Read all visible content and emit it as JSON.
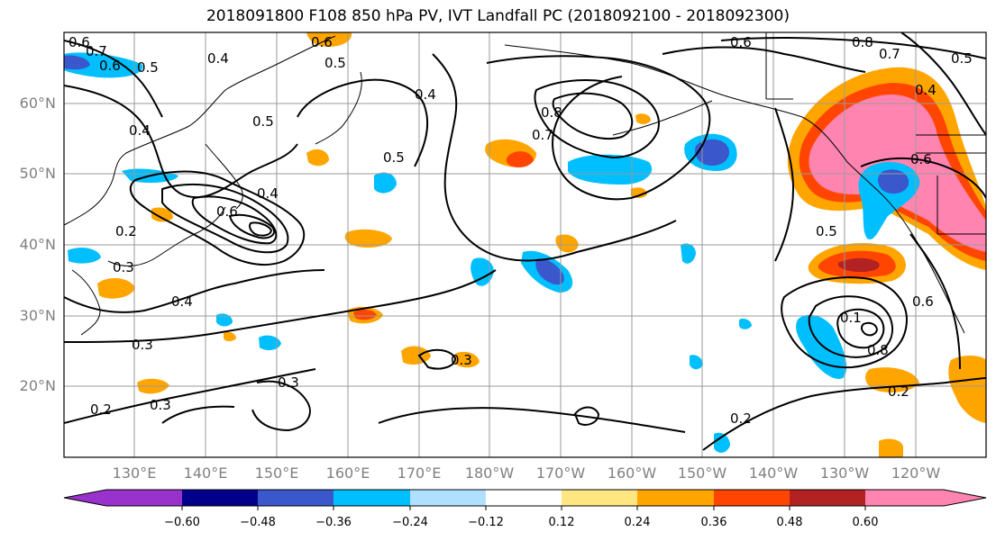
{
  "title": "2018091800 F108 850 hPa PV, IVT Landfall PC (2018092100 - 2018092300)",
  "map": {
    "lon_labels": [
      "130°E",
      "140°E",
      "150°E",
      "160°E",
      "170°E",
      "180°W",
      "170°W",
      "160°W",
      "150°W",
      "140°W",
      "130°W",
      "120°W"
    ],
    "lat_labels": [
      "60°N",
      "50°N",
      "40°N",
      "30°N",
      "20°N"
    ],
    "contour_labels": [
      "0.6",
      "0.7",
      "0.6",
      "0.5",
      "0.4",
      "0.5",
      "0.4",
      "0.5",
      "0.4",
      "0.6",
      "0.8",
      "0.7",
      "0.6",
      "0.8",
      "0.7",
      "0.5",
      "0.4",
      "0.6",
      "0.6",
      "0.4",
      "0.3",
      "0.2",
      "0.4",
      "0.3",
      "0.3",
      "0.3",
      "0.2",
      "0.3",
      "0.5",
      "0.1",
      "0.6",
      "0.8",
      "0.2",
      "0.2",
      "0.5"
    ]
  },
  "colorbar": {
    "ticks": [
      "−0.60",
      "−0.48",
      "−0.36",
      "−0.24",
      "−0.12",
      "0.12",
      "0.24",
      "0.36",
      "0.48",
      "0.60"
    ],
    "colors": [
      "#9932cc",
      "#00008b",
      "#3a57cc",
      "#00bfff",
      "#b0e0ff",
      "#ffffff",
      "#ffe680",
      "#ffa500",
      "#ff4500",
      "#b22222",
      "#ff85b0"
    ]
  }
}
